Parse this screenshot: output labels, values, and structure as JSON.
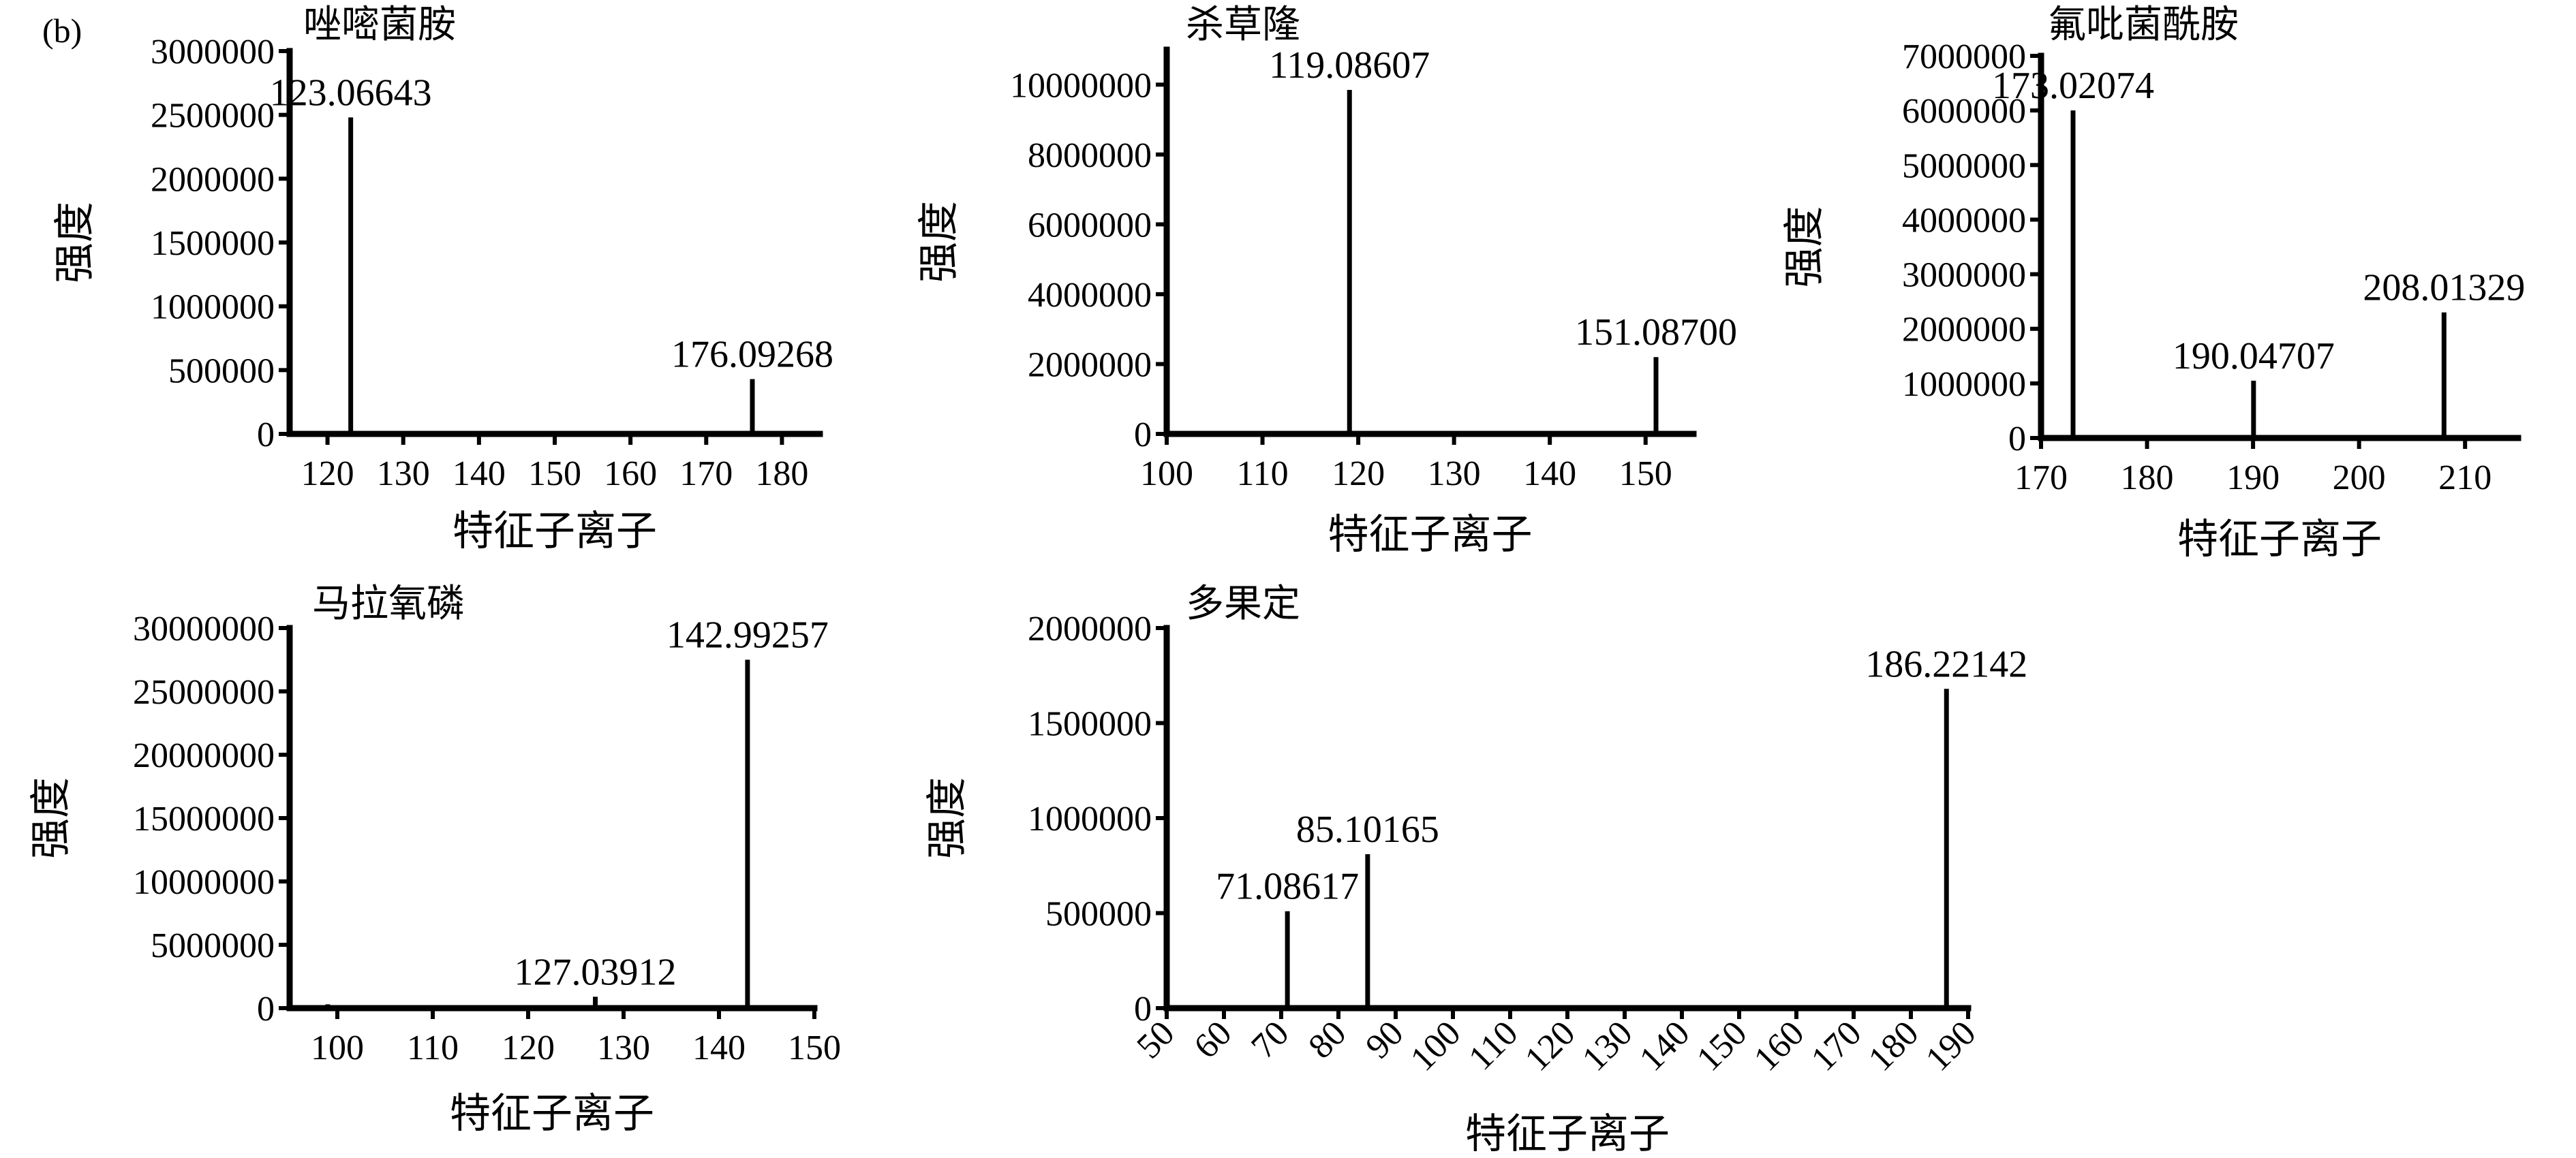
{
  "figure": {
    "panel_label": "(b)"
  },
  "chart_data": [
    {
      "type": "bar",
      "title": "唑嘧菌胺",
      "xlabel": "特征子离子",
      "ylabel": "强度",
      "xlim": [
        115,
        185
      ],
      "ylim": [
        0,
        3000000
      ],
      "xticks": [
        120,
        130,
        140,
        150,
        160,
        170,
        180
      ],
      "yticks": [
        0,
        500000,
        1000000,
        1500000,
        2000000,
        2500000,
        3000000
      ],
      "x_tick_rotation": 0,
      "peaks": [
        {
          "x": 123.06643,
          "y": 2480000,
          "label": "123.06643"
        },
        {
          "x": 176.09268,
          "y": 430000,
          "label": "176.09268"
        }
      ]
    },
    {
      "type": "bar",
      "title": "杀草隆",
      "xlabel": "特征子离子",
      "ylabel": "强度",
      "xlim": [
        100,
        155
      ],
      "ylim": [
        0,
        11000000
      ],
      "xticks": [
        100,
        110,
        120,
        130,
        140,
        150
      ],
      "yticks": [
        0,
        2000000,
        4000000,
        6000000,
        8000000,
        10000000
      ],
      "x_tick_rotation": 0,
      "peaks": [
        {
          "x": 119.08607,
          "y": 9850000,
          "label": "119.08607"
        },
        {
          "x": 151.087,
          "y": 2200000,
          "label": "151.08700"
        }
      ]
    },
    {
      "type": "bar",
      "title": "氟吡菌酰胺",
      "xlabel": "特征子离子",
      "ylabel": "强度",
      "xlim": [
        170,
        215
      ],
      "ylim": [
        0,
        7000000
      ],
      "xticks": [
        170,
        180,
        190,
        200,
        210
      ],
      "yticks": [
        0,
        1000000,
        2000000,
        3000000,
        4000000,
        5000000,
        6000000,
        7000000
      ],
      "x_tick_rotation": 0,
      "peaks": [
        {
          "x": 173.02074,
          "y": 6000000,
          "label": "173.02074"
        },
        {
          "x": 190.04707,
          "y": 1050000,
          "label": "190.04707"
        },
        {
          "x": 208.01329,
          "y": 2300000,
          "label": "208.01329"
        }
      ]
    },
    {
      "type": "bar",
      "title": "马拉氧磷",
      "xlabel": "特征子离子",
      "ylabel": "强度",
      "xlim": [
        95,
        150
      ],
      "ylim": [
        0,
        30000000
      ],
      "xticks": [
        100,
        110,
        120,
        130,
        140,
        150
      ],
      "yticks": [
        0,
        5000000,
        10000000,
        15000000,
        20000000,
        25000000,
        30000000
      ],
      "x_tick_rotation": 0,
      "peaks": [
        {
          "x": 99,
          "y": 300000,
          "label": ""
        },
        {
          "x": 127.03912,
          "y": 900000,
          "label": "127.03912"
        },
        {
          "x": 142.99257,
          "y": 27500000,
          "label": "142.99257"
        }
      ]
    },
    {
      "type": "bar",
      "title": "多果定",
      "xlabel": "特征子离子",
      "ylabel": "强度",
      "xlim": [
        50,
        190
      ],
      "ylim": [
        0,
        2000000
      ],
      "xticks": [
        50,
        60,
        70,
        80,
        90,
        100,
        110,
        120,
        130,
        140,
        150,
        160,
        170,
        180,
        190
      ],
      "yticks": [
        0,
        500000,
        1000000,
        1500000,
        2000000
      ],
      "x_tick_rotation": -45,
      "peaks": [
        {
          "x": 71.08617,
          "y": 510000,
          "label": "71.08617"
        },
        {
          "x": 85.10165,
          "y": 810000,
          "label": "85.10165"
        },
        {
          "x": 186.22142,
          "y": 1680000,
          "label": "186.22142"
        }
      ]
    }
  ]
}
